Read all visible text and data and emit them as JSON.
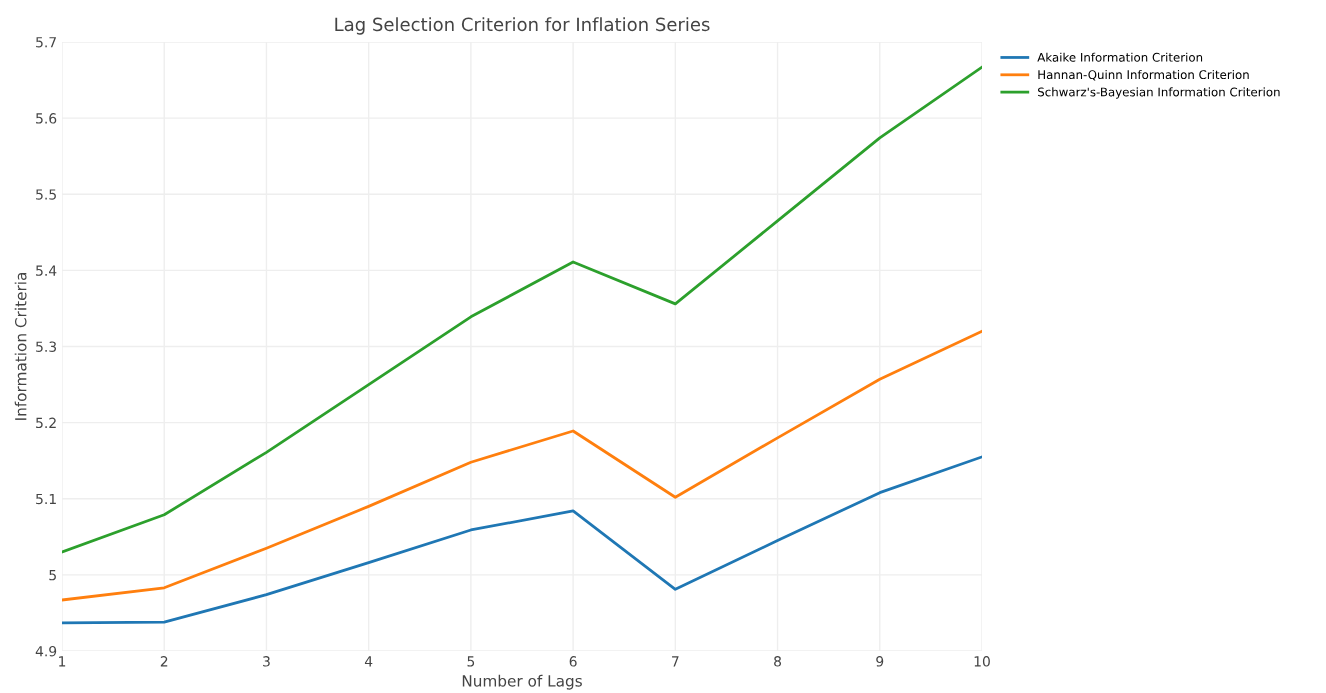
{
  "chart_data": {
    "type": "line",
    "title": "Lag Selection Criterion for Inflation Series",
    "xlabel": "Number of Lags",
    "ylabel": "Information Criteria",
    "x": [
      1,
      2,
      3,
      4,
      5,
      6,
      7,
      8,
      9,
      10
    ],
    "series": [
      {
        "name": "Akaike Information Criterion",
        "color": "#1f77b4",
        "values": [
          4.937,
          4.938,
          4.974,
          5.016,
          5.059,
          5.084,
          4.981,
          5.045,
          5.108,
          5.155
        ]
      },
      {
        "name": "Hannan-Quinn Information Criterion",
        "color": "#ff7f0e",
        "values": [
          4.967,
          4.983,
          5.035,
          5.09,
          5.148,
          5.189,
          5.102,
          5.18,
          5.257,
          5.32
        ]
      },
      {
        "name": "Schwarz's-Bayesian Information Criterion",
        "color": "#2ca02c",
        "values": [
          5.03,
          5.079,
          5.161,
          5.25,
          5.339,
          5.411,
          5.356,
          5.465,
          5.574,
          5.667
        ]
      }
    ],
    "xlim": [
      1,
      10
    ],
    "xticks": [
      1,
      2,
      3,
      4,
      5,
      6,
      7,
      8,
      9,
      10
    ],
    "ylim": [
      4.9,
      5.7
    ],
    "yticks": [
      4.9,
      5,
      5.1,
      5.2,
      5.3,
      5.4,
      5.5,
      5.6,
      5.7
    ],
    "grid": true,
    "legend": "top right",
    "line_style": "solid"
  }
}
